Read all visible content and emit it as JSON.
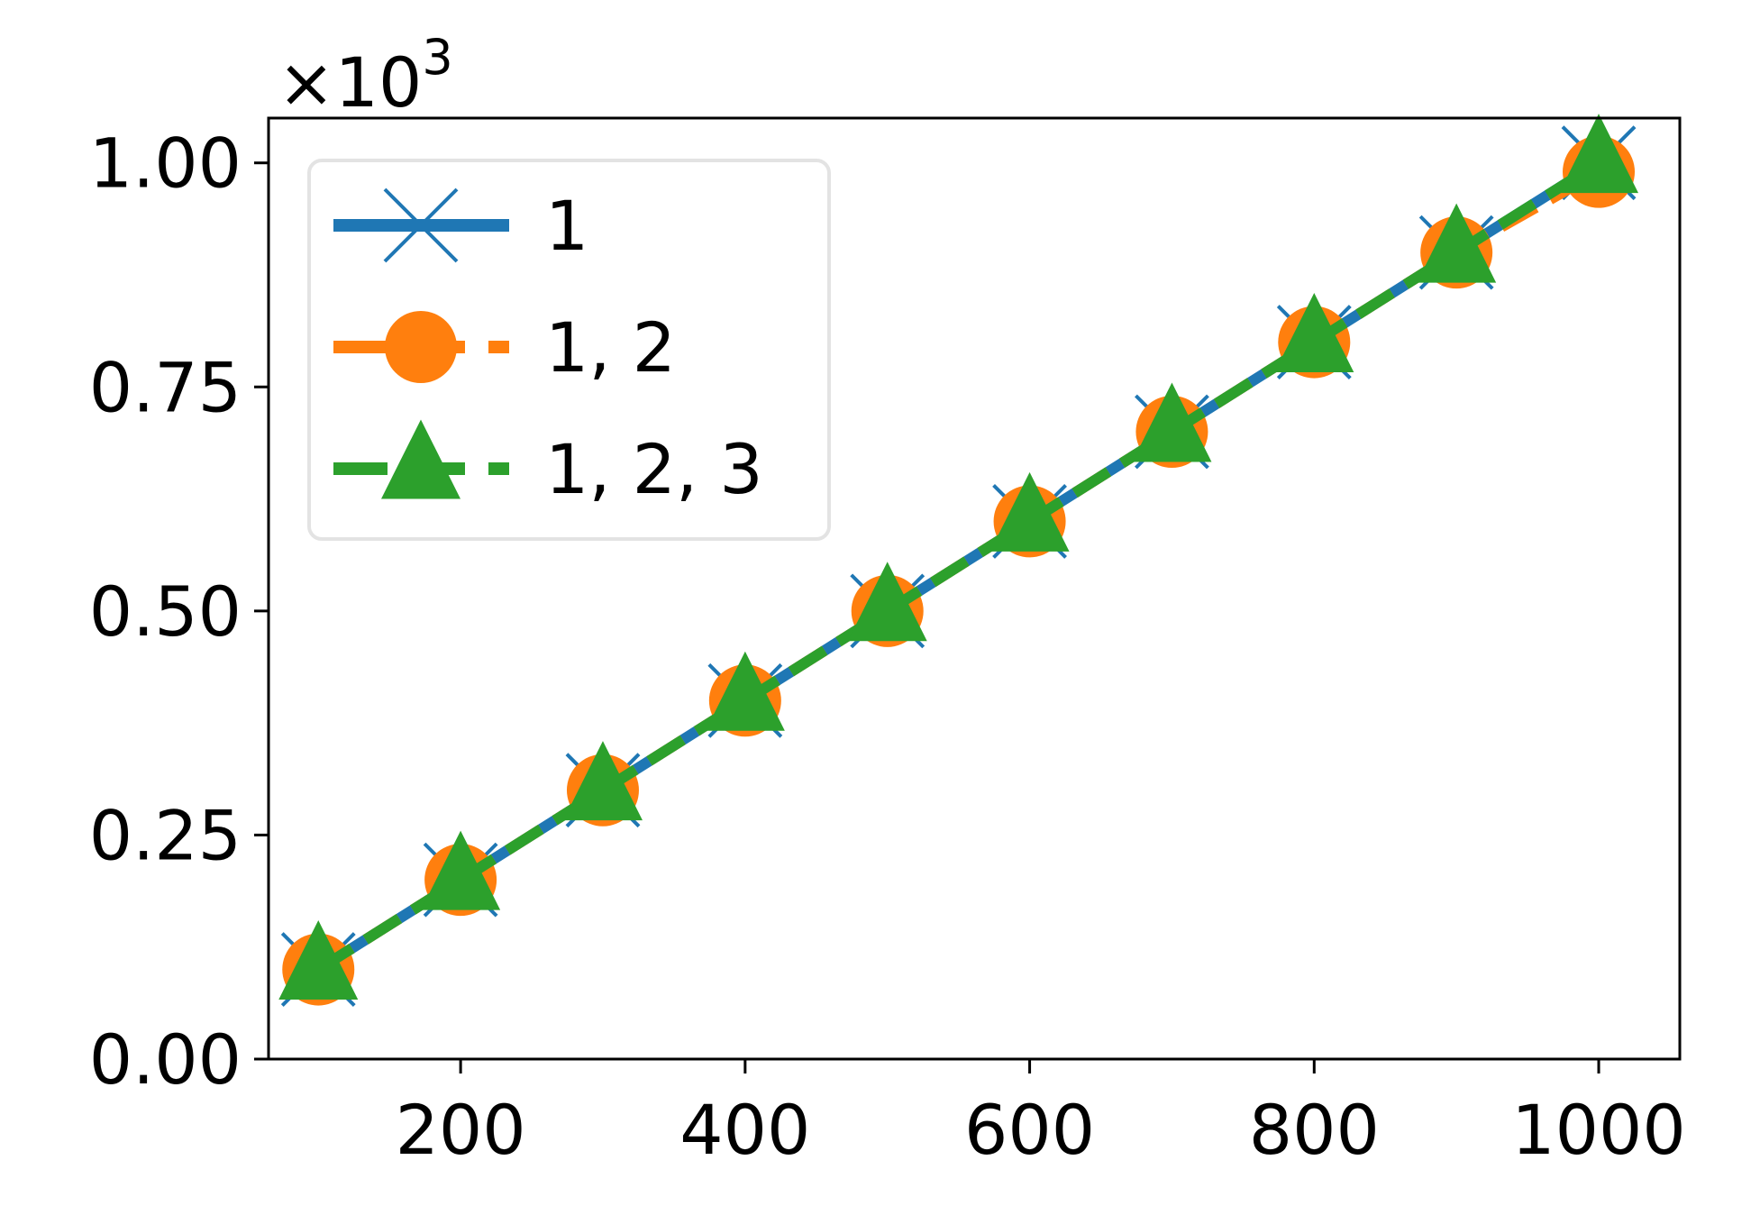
{
  "chart_data": {
    "type": "line",
    "title": "",
    "xlabel": "",
    "ylabel": "",
    "y_offset_label": "×10",
    "y_offset_exponent": "3",
    "xlim": [
      65,
      1057
    ],
    "ylim": [
      0,
      1.05
    ],
    "xticks": [
      200,
      400,
      600,
      800,
      1000
    ],
    "xtick_labels": [
      "200",
      "400",
      "600",
      "800",
      "1000"
    ],
    "yticks": [
      0,
      0.25,
      0.5,
      0.75,
      1.0
    ],
    "ytick_labels": [
      "0.00",
      "0.25",
      "0.50",
      "0.75",
      "1.00"
    ],
    "grid": false,
    "legend_position": "upper-left",
    "x": [
      100,
      200,
      300,
      400,
      500,
      600,
      700,
      800,
      900,
      1000
    ],
    "series": [
      {
        "name": "1",
        "color": "#1f77b4",
        "marker": "x",
        "linestyle": "solid",
        "values": [
          0.1,
          0.2,
          0.3,
          0.4,
          0.5,
          0.6,
          0.7,
          0.8,
          0.9,
          1.0
        ]
      },
      {
        "name": "1, 2",
        "color": "#ff7f0e",
        "marker": "circle",
        "linestyle": "dashed",
        "values": [
          0.1,
          0.2,
          0.3,
          0.4,
          0.5,
          0.6,
          0.7,
          0.8,
          0.9,
          0.99
        ]
      },
      {
        "name": "1, 2, 3",
        "color": "#2ca02c",
        "marker": "triangle",
        "linestyle": "dashed",
        "values": [
          0.1,
          0.2,
          0.3,
          0.4,
          0.5,
          0.6,
          0.7,
          0.8,
          0.9,
          1.0
        ]
      }
    ]
  }
}
